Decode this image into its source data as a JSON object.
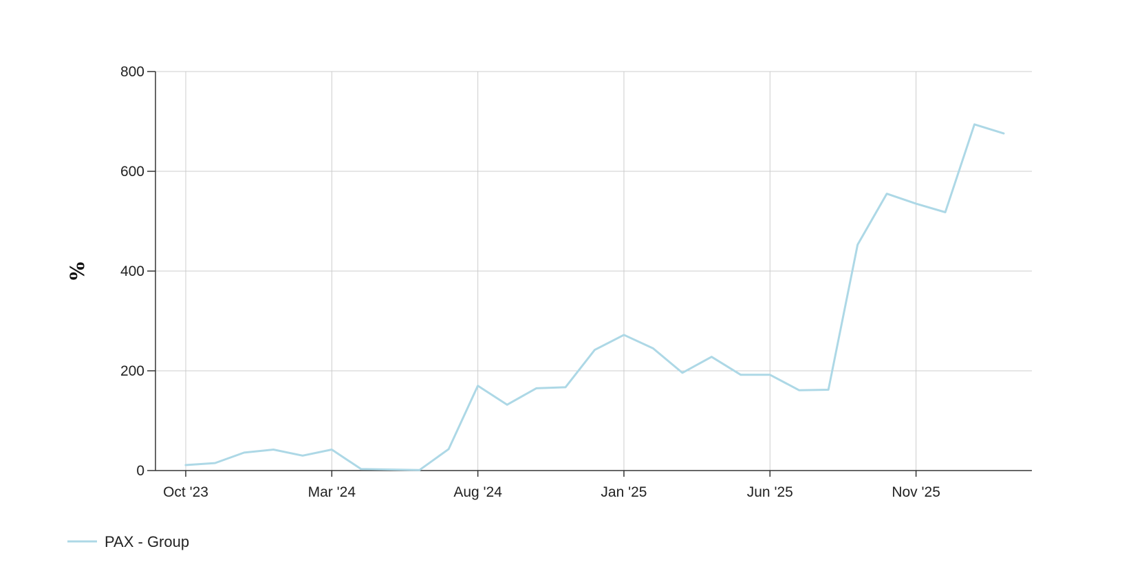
{
  "chart_data": {
    "type": "line",
    "title": "",
    "xlabel": "",
    "ylabel": "%",
    "ylim": [
      0,
      800
    ],
    "y_ticks": [
      0,
      200,
      400,
      600,
      800
    ],
    "x_range": [
      "2023-10",
      "2026-02"
    ],
    "x_ticks": [
      {
        "label": "Oct '23",
        "x": "2023-10"
      },
      {
        "label": "Mar '24",
        "x": "2024-03"
      },
      {
        "label": "Aug '24",
        "x": "2024-08"
      },
      {
        "label": "Jan '25",
        "x": "2025-01"
      },
      {
        "label": "Jun '25",
        "x": "2025-06"
      },
      {
        "label": "Nov '25",
        "x": "2025-11"
      }
    ],
    "grid": true,
    "legend_position": "bottom-left",
    "series": [
      {
        "name": "PAX - Group",
        "color": "#add8e6",
        "x": [
          "2023-10",
          "2023-11",
          "2023-12",
          "2024-01",
          "2024-02",
          "2024-03",
          "2024-04",
          "2024-05",
          "2024-06",
          "2024-07",
          "2024-08",
          "2024-09",
          "2024-10",
          "2024-11",
          "2024-12",
          "2025-01",
          "2025-02",
          "2025-03",
          "2025-04",
          "2025-05",
          "2025-06",
          "2025-07",
          "2025-08",
          "2025-09",
          "2025-10",
          "2025-11",
          "2025-12",
          "2026-01",
          "2026-02"
        ],
        "values": [
          11,
          15,
          36,
          42,
          30,
          42,
          3,
          2,
          1,
          43,
          170,
          132,
          165,
          167,
          242,
          272,
          245,
          196,
          228,
          192,
          192,
          161,
          162,
          453,
          555,
          535,
          518,
          694,
          676
        ]
      }
    ]
  }
}
